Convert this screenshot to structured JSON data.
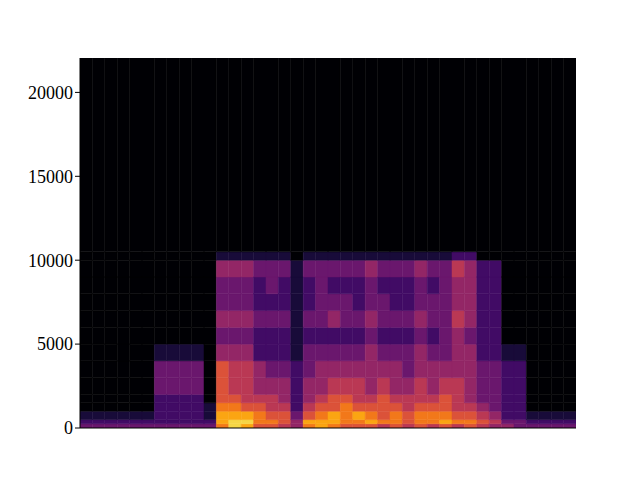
{
  "chart_data": {
    "type": "heatmap",
    "tick_labels": "y",
    "xlim": [
      0,
      40
    ],
    "ylim": [
      0,
      22050
    ],
    "yticks": [
      0,
      5000,
      10000,
      15000,
      20000
    ],
    "y_bins": [
      0,
      250,
      500,
      1000,
      1500,
      2000,
      3000,
      4000,
      5000,
      6000,
      7000,
      8000,
      9000,
      10000,
      10500,
      22050
    ],
    "zlim": [
      0,
      10
    ],
    "cells": [
      [
        3,
        2,
        1,
        0,
        0,
        0,
        0,
        0,
        0,
        0,
        0,
        0,
        0,
        0,
        0
      ],
      [
        3,
        2,
        1,
        0,
        0,
        0,
        0,
        0,
        0,
        0,
        0,
        0,
        0,
        0,
        0
      ],
      [
        3,
        2,
        1,
        0,
        0,
        0,
        0,
        0,
        0,
        0,
        0,
        0,
        0,
        0,
        0
      ],
      [
        3,
        2,
        1,
        0,
        0,
        0,
        0,
        0,
        0,
        0,
        0,
        0,
        0,
        0,
        0
      ],
      [
        3,
        2,
        1,
        0,
        0,
        0,
        0,
        0,
        0,
        0,
        0,
        0,
        0,
        0,
        0
      ],
      [
        3,
        2,
        1,
        0,
        0,
        0,
        0,
        0,
        0,
        0,
        0,
        0,
        0,
        0,
        0
      ],
      [
        3,
        2,
        2,
        2,
        2,
        3,
        3,
        1,
        0,
        0,
        0,
        0,
        0,
        0,
        0
      ],
      [
        3,
        2,
        2,
        2,
        2,
        3,
        3,
        1,
        0,
        0,
        0,
        0,
        0,
        0,
        0
      ],
      [
        3,
        2,
        2,
        2,
        2,
        3,
        3,
        1,
        0,
        0,
        0,
        0,
        0,
        0,
        0
      ],
      [
        3,
        2,
        2,
        2,
        2,
        3,
        3,
        1,
        0,
        0,
        0,
        0,
        0,
        0,
        0
      ],
      [
        3,
        2,
        1,
        1,
        0,
        0,
        0,
        0,
        0,
        0,
        0,
        0,
        0,
        0,
        0
      ],
      [
        7,
        8,
        8,
        7,
        6,
        6,
        6,
        4,
        3,
        4,
        3,
        3,
        4,
        1,
        0
      ],
      [
        9,
        9,
        8,
        7,
        6,
        5,
        5,
        4,
        3,
        4,
        3,
        3,
        4,
        1,
        0
      ],
      [
        8,
        9,
        8,
        6,
        5,
        5,
        5,
        4,
        3,
        4,
        3,
        3,
        4,
        1,
        0
      ],
      [
        6,
        7,
        7,
        6,
        5,
        4,
        4,
        2,
        2,
        3,
        2,
        2,
        3,
        1,
        0
      ],
      [
        6,
        7,
        6,
        5,
        5,
        4,
        3,
        2,
        2,
        3,
        2,
        3,
        3,
        1,
        0
      ],
      [
        5,
        6,
        6,
        5,
        4,
        4,
        3,
        2,
        2,
        3,
        2,
        2,
        3,
        1,
        0
      ],
      [
        4,
        4,
        3,
        2,
        2,
        2,
        2,
        1,
        1,
        1,
        1,
        1,
        1,
        0,
        0
      ],
      [
        7,
        8,
        6,
        5,
        4,
        4,
        3,
        3,
        2,
        3,
        2,
        2,
        3,
        1,
        0
      ],
      [
        8,
        8,
        7,
        6,
        5,
        4,
        4,
        3,
        2,
        3,
        3,
        3,
        3,
        1,
        0
      ],
      [
        7,
        8,
        8,
        6,
        6,
        5,
        4,
        3,
        2,
        4,
        3,
        2,
        3,
        1,
        0
      ],
      [
        6,
        7,
        7,
        7,
        6,
        5,
        4,
        3,
        2,
        3,
        3,
        2,
        3,
        1,
        0
      ],
      [
        6,
        7,
        8,
        6,
        5,
        5,
        4,
        3,
        2,
        3,
        2,
        2,
        3,
        1,
        0
      ],
      [
        6,
        8,
        7,
        6,
        5,
        4,
        4,
        4,
        3,
        4,
        3,
        3,
        4,
        1,
        0
      ],
      [
        5,
        7,
        6,
        6,
        6,
        5,
        4,
        3,
        2,
        3,
        3,
        2,
        3,
        1,
        0
      ],
      [
        6,
        7,
        7,
        6,
        5,
        4,
        4,
        3,
        2,
        3,
        2,
        2,
        3,
        1,
        0
      ],
      [
        5,
        6,
        6,
        5,
        5,
        4,
        3,
        3,
        2,
        3,
        2,
        2,
        3,
        1,
        0
      ],
      [
        6,
        7,
        7,
        6,
        5,
        5,
        4,
        4,
        3,
        4,
        3,
        3,
        4,
        1,
        0
      ],
      [
        5,
        7,
        7,
        6,
        5,
        4,
        4,
        3,
        2,
        3,
        3,
        2,
        3,
        1,
        0
      ],
      [
        6,
        8,
        7,
        6,
        6,
        5,
        4,
        3,
        3,
        3,
        3,
        3,
        3,
        1,
        0
      ],
      [
        5,
        7,
        6,
        5,
        5,
        5,
        4,
        4,
        4,
        5,
        4,
        4,
        5,
        2,
        0
      ],
      [
        6,
        7,
        6,
        5,
        4,
        4,
        4,
        4,
        3,
        4,
        4,
        4,
        4,
        2,
        0
      ],
      [
        5,
        6,
        5,
        4,
        3,
        3,
        3,
        2,
        2,
        2,
        2,
        2,
        2,
        0,
        0
      ],
      [
        4,
        5,
        4,
        3,
        3,
        3,
        3,
        2,
        2,
        2,
        2,
        2,
        2,
        0,
        0
      ],
      [
        4,
        3,
        2,
        2,
        2,
        2,
        2,
        1,
        0,
        0,
        0,
        0,
        0,
        0,
        0
      ],
      [
        3,
        3,
        2,
        2,
        2,
        2,
        2,
        1,
        0,
        0,
        0,
        0,
        0,
        0,
        0
      ],
      [
        3,
        2,
        1,
        0,
        0,
        0,
        0,
        0,
        0,
        0,
        0,
        0,
        0,
        0,
        0
      ],
      [
        3,
        2,
        1,
        0,
        0,
        0,
        0,
        0,
        0,
        0,
        0,
        0,
        0,
        0,
        0
      ],
      [
        3,
        2,
        1,
        0,
        0,
        0,
        0,
        0,
        0,
        0,
        0,
        0,
        0,
        0,
        0
      ],
      [
        3,
        2,
        1,
        0,
        0,
        0,
        0,
        0,
        0,
        0,
        0,
        0,
        0,
        0,
        0
      ]
    ]
  }
}
